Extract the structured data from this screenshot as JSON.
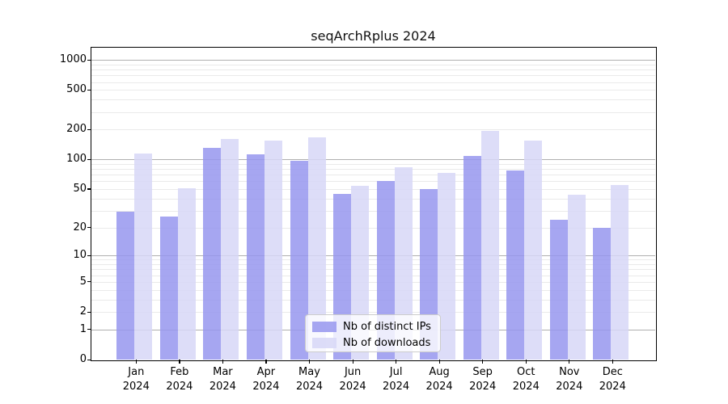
{
  "title": "seqArchRplus 2024",
  "chart_data": {
    "type": "bar",
    "title": "seqArchRplus 2024",
    "categories": [
      "Jan",
      "Feb",
      "Mar",
      "Apr",
      "May",
      "Jun",
      "Jul",
      "Aug",
      "Sep",
      "Oct",
      "Nov",
      "Dec"
    ],
    "category_year": "2024",
    "series": [
      {
        "name": "Nb of distinct IPs",
        "color": "#9797ef",
        "values": [
          29,
          26,
          130,
          113,
          96,
          45,
          61,
          50,
          108,
          78,
          24,
          20
        ]
      },
      {
        "name": "Nb of downloads",
        "color": "#d7d7f7",
        "values": [
          115,
          51,
          162,
          154,
          167,
          54,
          84,
          73,
          195,
          154,
          44,
          55
        ]
      }
    ],
    "yscale": "log1p",
    "ylim": [
      0,
      1280
    ],
    "y_ticks": [
      0,
      1,
      2,
      5,
      10,
      20,
      50,
      100,
      200,
      500,
      1000
    ],
    "grid": true,
    "legend_position": "lower-center"
  },
  "colors": {
    "bar_ips": "#9797ef",
    "bar_downloads": "#d7d7f7",
    "major_grid": "#b0b0b0",
    "minor_grid": "#eaeaea",
    "spine": "#000000",
    "legend_border": "#cccccc"
  }
}
